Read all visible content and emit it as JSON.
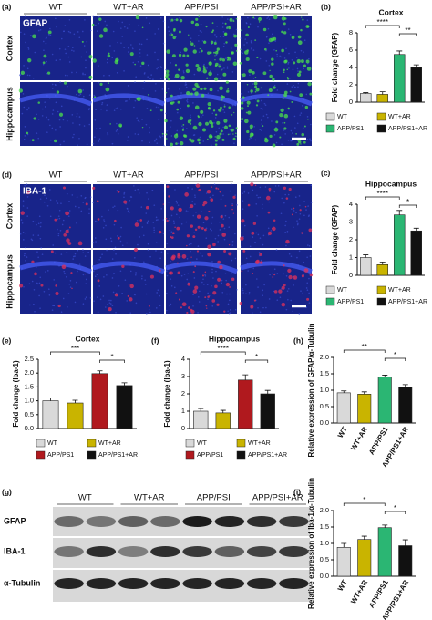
{
  "panel_a": {
    "label": "(a)",
    "stain": "GFAP",
    "columns": [
      "WT",
      "WT+AR",
      "APP/PSI",
      "APP/PSI+AR"
    ],
    "rows": [
      "Cortex",
      "Hippocampus"
    ]
  },
  "panel_d": {
    "label": "(d)",
    "stain": "IBA-1",
    "columns": [
      "WT",
      "WT+AR",
      "APP/PSI",
      "APP/PSI+AR"
    ],
    "rows": [
      "Cortex",
      "Hippocampus"
    ]
  },
  "panel_g": {
    "label": "(g)",
    "columns": [
      "WT",
      "WT+AR",
      "APP/PSI",
      "APP/PSI+AR"
    ],
    "rows": [
      "GFAP",
      "IBA-1",
      "α-Tubulin"
    ]
  },
  "chart_data": [
    {
      "type": "bar",
      "panel": "(b)",
      "title": "Cortex",
      "y_label": "Fold change (GFAP)",
      "categories": [
        "WT",
        "WT+AR",
        "APP/PS1",
        "APP/PS1+AR"
      ],
      "values": [
        1.0,
        0.9,
        5.5,
        4.0
      ],
      "errors": [
        0.1,
        0.3,
        0.4,
        0.3
      ],
      "colors": [
        "#d9d9d9",
        "#c9b400",
        "#2bb673",
        "#111111"
      ],
      "ylim": [
        0,
        8
      ],
      "yticks": [
        0,
        2,
        4,
        6,
        8
      ],
      "annotations": [
        "****",
        "**"
      ],
      "legend": true
    },
    {
      "type": "bar",
      "panel": "(c)",
      "title": "Hippocampus",
      "y_label": "Fold change (GFAP)",
      "categories": [
        "WT",
        "WT+AR",
        "APP/PS1",
        "APP/PS1+AR"
      ],
      "values": [
        1.0,
        0.6,
        3.4,
        2.5
      ],
      "errors": [
        0.15,
        0.15,
        0.25,
        0.15
      ],
      "colors": [
        "#d9d9d9",
        "#c9b400",
        "#2bb673",
        "#111111"
      ],
      "ylim": [
        0,
        4
      ],
      "yticks": [
        0,
        1,
        2,
        3,
        4
      ],
      "annotations": [
        "****",
        "*"
      ],
      "legend": true
    },
    {
      "type": "bar",
      "panel": "(e)",
      "title": "Cortex",
      "y_label": "Fold change (Iba-1)",
      "categories": [
        "WT",
        "WT+AR",
        "APP/PS1",
        "APP/PS1+AR"
      ],
      "values": [
        1.0,
        0.92,
        1.98,
        1.55
      ],
      "errors": [
        0.1,
        0.1,
        0.1,
        0.1
      ],
      "colors": [
        "#d9d9d9",
        "#c9b400",
        "#b0191e",
        "#111111"
      ],
      "ylim": [
        0,
        2.5
      ],
      "yticks": [
        {
          "value": 0,
          "label": "0.0"
        },
        0.5,
        {
          "value": 1,
          "label": "1.0"
        },
        1.5,
        {
          "value": 2,
          "label": "2.0"
        },
        2.5
      ],
      "annotations": [
        "***",
        "*"
      ],
      "legend": true
    },
    {
      "type": "bar",
      "panel": "(f)",
      "title": "Hippocampus",
      "y_label": "Fold change (Iba-1)",
      "categories": [
        "WT",
        "WT+AR",
        "APP/PS1",
        "APP/PS1+AR"
      ],
      "values": [
        1.0,
        0.9,
        2.8,
        2.0
      ],
      "errors": [
        0.15,
        0.15,
        0.3,
        0.2
      ],
      "colors": [
        "#d9d9d9",
        "#c9b400",
        "#b0191e",
        "#111111"
      ],
      "ylim": [
        0,
        4
      ],
      "yticks": [
        0,
        1,
        2,
        3,
        4
      ],
      "annotations": [
        "****",
        "*"
      ],
      "legend": true
    },
    {
      "type": "bar",
      "panel": "(h)",
      "y_label": "Relative expression of GFAP/α-Tubulin",
      "categories": [
        "WT",
        "WT+AR",
        "APP/PS1",
        "APP/PS1+AR"
      ],
      "values": [
        0.92,
        0.88,
        1.4,
        1.1
      ],
      "errors": [
        0.06,
        0.07,
        0.06,
        0.07
      ],
      "colors": [
        "#d9d9d9",
        "#c9b400",
        "#2bb673",
        "#111111"
      ],
      "ylim": [
        0,
        2
      ],
      "yticks": [
        {
          "value": 0,
          "label": "0.0"
        },
        0.5,
        {
          "value": 1,
          "label": "1.0"
        },
        1.5,
        {
          "value": 2,
          "label": "2.0"
        }
      ],
      "annotations": [
        "**",
        "*"
      ],
      "legend": false
    },
    {
      "type": "bar",
      "panel": "(i)",
      "y_label": "Relative expression of Iba-1/α-Tubulin",
      "categories": [
        "WT",
        "WT+AR",
        "APP/PS1",
        "APP/PS1+AR"
      ],
      "values": [
        0.88,
        1.12,
        1.48,
        0.93
      ],
      "errors": [
        0.12,
        0.1,
        0.08,
        0.18
      ],
      "colors": [
        "#d9d9d9",
        "#c9b400",
        "#2bb673",
        "#111111"
      ],
      "ylim": [
        0,
        2
      ],
      "yticks": [
        {
          "value": 0,
          "label": "0.0"
        },
        0.5,
        {
          "value": 1,
          "label": "1.0"
        },
        1.5,
        {
          "value": 2,
          "label": "2.0"
        }
      ],
      "annotations": [
        "*",
        "*"
      ],
      "legend": false
    }
  ]
}
